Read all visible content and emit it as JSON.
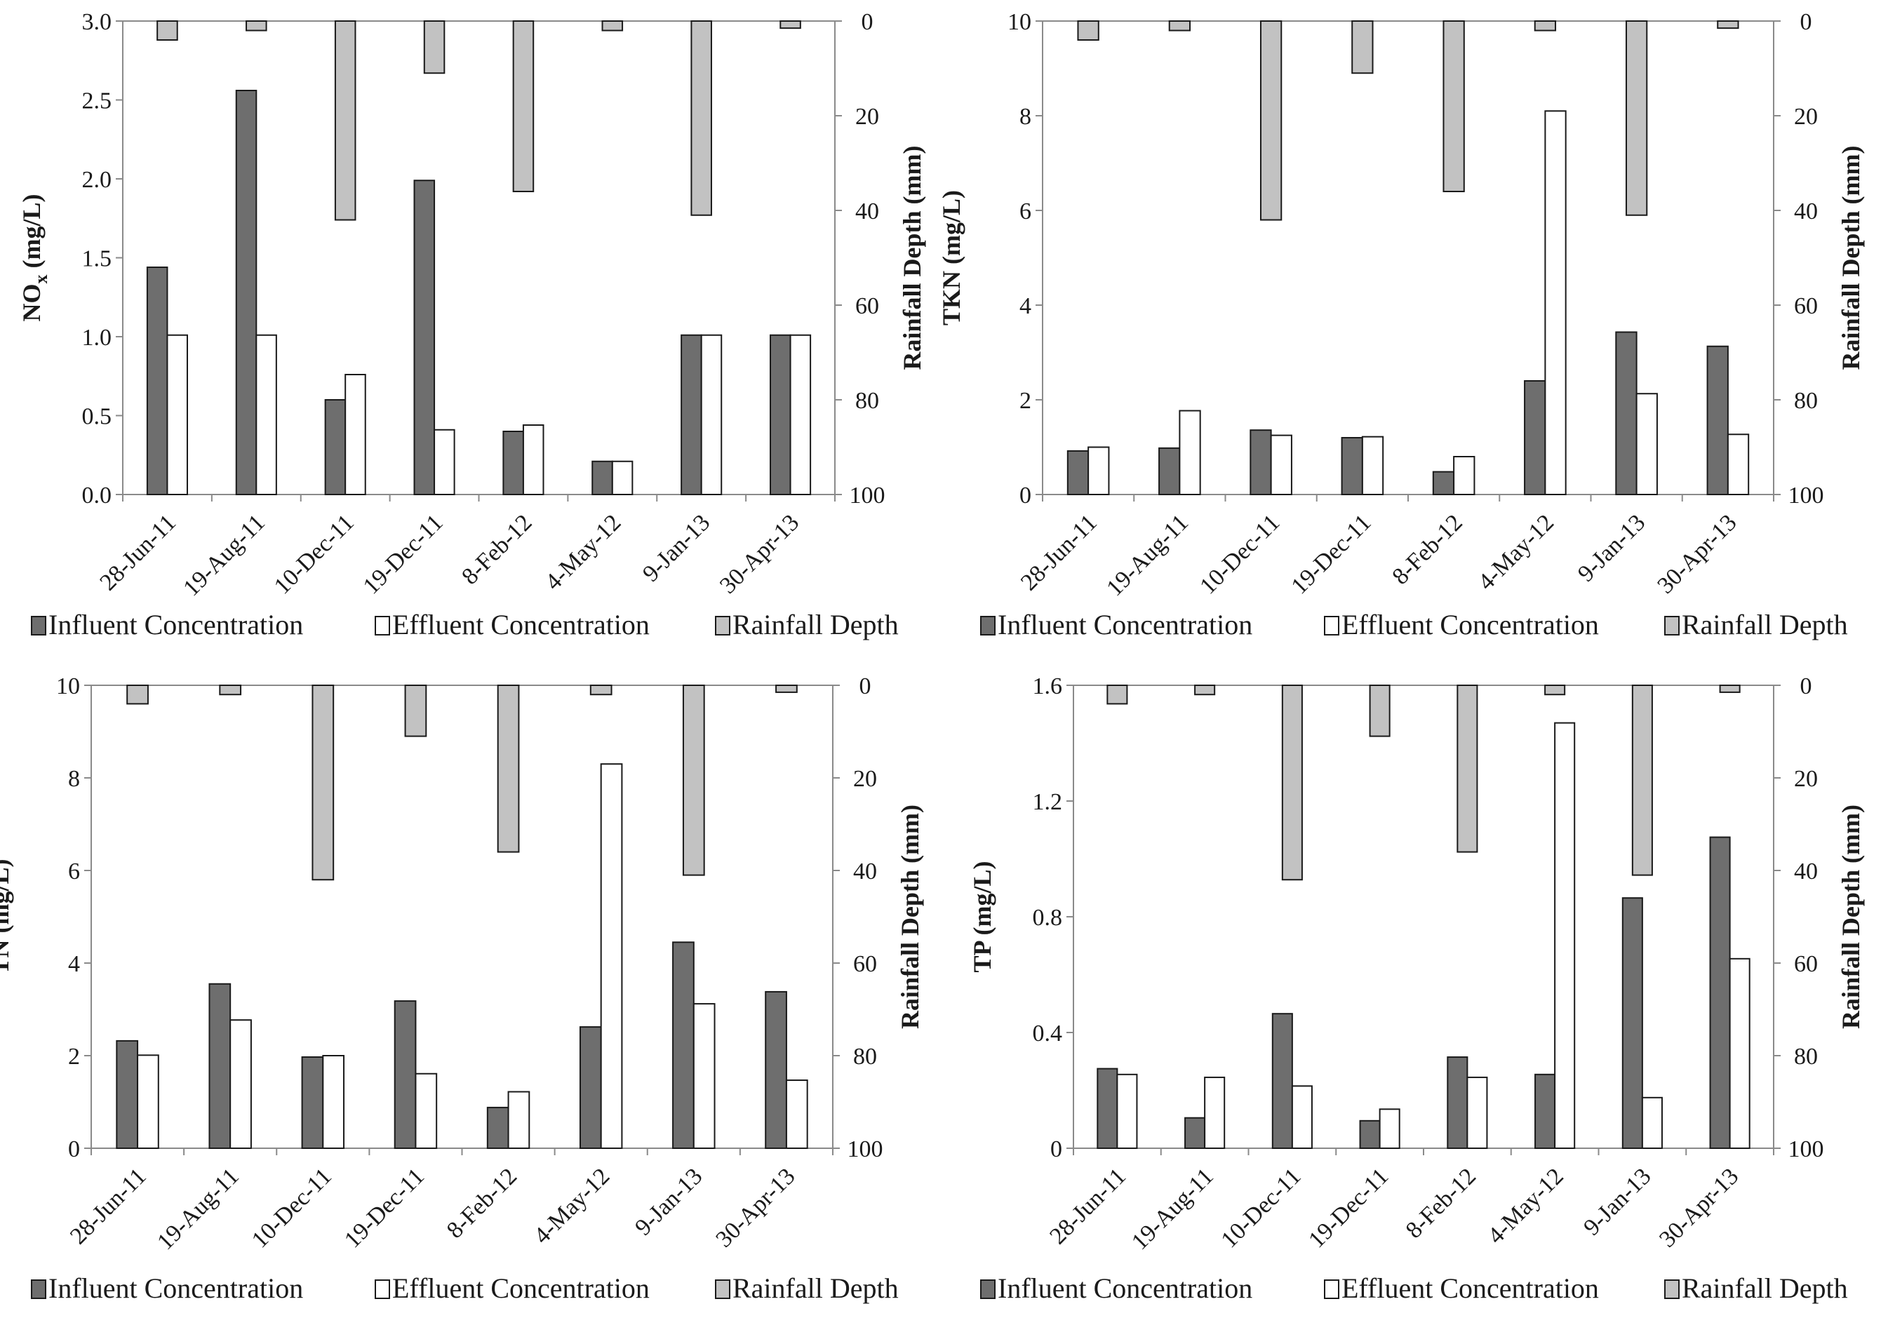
{
  "colors": {
    "influent": "#6e6e6e",
    "effluent": "#ffffff",
    "rainfall": "#c2c2c2"
  },
  "chart_data": [
    {
      "type": "bar",
      "panel": "nox",
      "categories": [
        "28-Jun-11",
        "19-Aug-11",
        "10-Dec-11",
        "19-Dec-11",
        "8-Feb-12",
        "4-May-12",
        "9-Jan-13",
        "30-Apr-13"
      ],
      "ylabel_main": "NO",
      "ylabel_sub": "x",
      "ylabel_unit": " (mg/L)",
      "ylabel_right": "Rainfall Depth (mm)",
      "ylim": [
        0,
        3
      ],
      "yticks": [
        "0.0",
        "0.5",
        "1.0",
        "1.5",
        "2.0",
        "2.5",
        "3.0"
      ],
      "ylim_right": [
        0,
        100
      ],
      "yticks_right": [
        "0",
        "20",
        "40",
        "60",
        "80",
        "100"
      ],
      "legend": [
        "Influent Concentration",
        "Effluent Concentration",
        "Rainfall Depth"
      ],
      "series": [
        {
          "name": "Influent Concentration",
          "values": [
            1.44,
            2.56,
            0.6,
            1.99,
            0.4,
            0.21,
            1.01,
            1.01
          ]
        },
        {
          "name": "Effluent Concentration",
          "values": [
            1.01,
            1.01,
            0.76,
            0.41,
            0.44,
            0.21,
            1.01,
            1.01
          ]
        },
        {
          "name": "Rainfall Depth",
          "values": [
            4,
            2,
            42,
            11,
            36,
            2,
            41,
            1.5
          ]
        }
      ]
    },
    {
      "type": "bar",
      "panel": "tkn",
      "categories": [
        "28-Jun-11",
        "19-Aug-11",
        "10-Dec-11",
        "19-Dec-11",
        "8-Feb-12",
        "4-May-12",
        "9-Jan-13",
        "30-Apr-13"
      ],
      "ylabel_main": "TKN",
      "ylabel_sub": "",
      "ylabel_unit": " (mg/L)",
      "ylabel_right": "Rainfall Depth (mm)",
      "ylim": [
        0,
        10
      ],
      "yticks": [
        "0",
        "2",
        "4",
        "6",
        "8",
        "10"
      ],
      "ylim_right": [
        0,
        100
      ],
      "yticks_right": [
        "0",
        "20",
        "40",
        "60",
        "80",
        "100"
      ],
      "legend": [
        "Influent Concentration",
        "Effluent Concentration",
        "Rainfall Depth"
      ],
      "series": [
        {
          "name": "Influent Concentration",
          "values": [
            0.92,
            0.98,
            1.36,
            1.2,
            0.48,
            2.4,
            3.43,
            3.13
          ]
        },
        {
          "name": "Effluent Concentration",
          "values": [
            1.0,
            1.77,
            1.25,
            1.22,
            0.8,
            8.1,
            2.13,
            1.27
          ]
        },
        {
          "name": "Rainfall Depth",
          "values": [
            4,
            2,
            42,
            11,
            36,
            2,
            41,
            1.5
          ]
        }
      ]
    },
    {
      "type": "bar",
      "panel": "tn",
      "categories": [
        "28-Jun-11",
        "19-Aug-11",
        "10-Dec-11",
        "19-Dec-11",
        "8-Feb-12",
        "4-May-12",
        "9-Jan-13",
        "30-Apr-13"
      ],
      "ylabel_main": "TN",
      "ylabel_sub": "",
      "ylabel_unit": " (mg/L)",
      "ylabel_right": "Rainfall Depth (mm)",
      "ylim": [
        0,
        10
      ],
      "yticks": [
        "0",
        "2",
        "4",
        "6",
        "8",
        "10"
      ],
      "ylim_right": [
        0,
        100
      ],
      "yticks_right": [
        "0",
        "20",
        "40",
        "60",
        "80",
        "100"
      ],
      "legend": [
        "Influent Concentration",
        "Effluent Concentration",
        "Rainfall Depth"
      ],
      "series": [
        {
          "name": "Influent Concentration",
          "values": [
            2.32,
            3.55,
            1.97,
            3.18,
            0.88,
            2.62,
            4.45,
            3.38
          ]
        },
        {
          "name": "Effluent Concentration",
          "values": [
            2.01,
            2.77,
            2.0,
            1.61,
            1.22,
            8.3,
            3.12,
            1.47
          ]
        },
        {
          "name": "Rainfall Depth",
          "values": [
            4,
            2,
            42,
            11,
            36,
            2,
            41,
            1.5
          ]
        }
      ]
    },
    {
      "type": "bar",
      "panel": "tp",
      "categories": [
        "28-Jun-11",
        "19-Aug-11",
        "10-Dec-11",
        "19-Dec-11",
        "8-Feb-12",
        "4-May-12",
        "9-Jan-13",
        "30-Apr-13"
      ],
      "ylabel_main": "TP",
      "ylabel_sub": "",
      "ylabel_unit": " (mg/L)",
      "ylabel_right": "Rainfall Depth (mm)",
      "ylim": [
        0,
        1.6
      ],
      "yticks": [
        "0",
        "0.4",
        "0.8",
        "1.2",
        "1.6"
      ],
      "ylim_right": [
        0,
        100
      ],
      "yticks_right": [
        "0",
        "20",
        "40",
        "60",
        "80",
        "100"
      ],
      "legend": [
        "Influent Concentration",
        "Effluent Concentration",
        "Rainfall Depth"
      ],
      "series": [
        {
          "name": "Influent Concentration",
          "values": [
            0.275,
            0.105,
            0.465,
            0.095,
            0.315,
            0.255,
            0.865,
            1.075
          ]
        },
        {
          "name": "Effluent Concentration",
          "values": [
            0.255,
            0.245,
            0.215,
            0.135,
            0.245,
            1.47,
            0.175,
            0.655
          ]
        },
        {
          "name": "Rainfall Depth",
          "values": [
            4,
            2,
            42,
            11,
            36,
            2,
            41,
            1.5
          ]
        }
      ]
    }
  ]
}
